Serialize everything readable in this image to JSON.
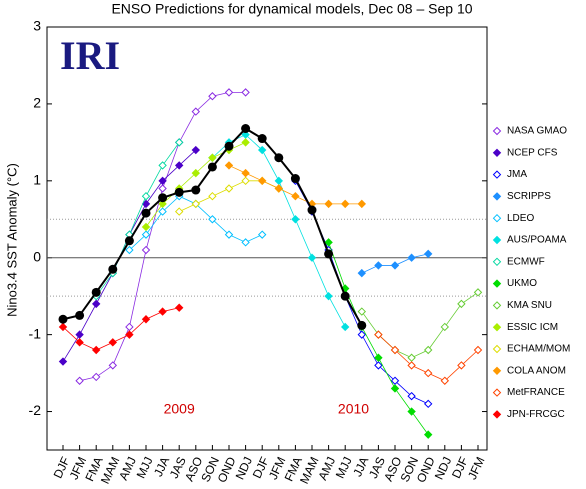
{
  "chart_data": {
    "type": "line",
    "title": "ENSO Predictions for dynamical models, Dec 08 – Sep 10",
    "y_label": "Nino3.4 SST Anomaly (°C)",
    "logo": "IRI",
    "annotations": [
      "2009",
      "2010"
    ],
    "categories": [
      "DJF",
      "JFM",
      "FMA",
      "MAM",
      "AMJ",
      "MJJ",
      "JJA",
      "JAS",
      "ASO",
      "SON",
      "OND",
      "NDJ",
      "DJF",
      "JFM",
      "FMA",
      "MAM",
      "AMJ",
      "MJJ",
      "JJA",
      "JAS",
      "ASO",
      "SON",
      "OND",
      "NDJ",
      "DJF",
      "JFM"
    ],
    "ylim": [
      -2.5,
      3
    ],
    "yticks": [
      -2,
      -1,
      0,
      1,
      2,
      3
    ],
    "reference_lines": [
      -0.5,
      0.5
    ],
    "mean": {
      "color": "#000000",
      "values": [
        -0.8,
        -0.75,
        -0.45,
        -0.15,
        0.22,
        0.58,
        0.78,
        0.85,
        0.88,
        1.18,
        1.45,
        1.68,
        1.55,
        1.3,
        1.03,
        0.62,
        0.05,
        -0.5,
        -0.88,
        null,
        null,
        null,
        null,
        null,
        null,
        null
      ]
    },
    "series": [
      {
        "name": "NASA GMAO",
        "color": "#8a2be2",
        "marker": "open",
        "values": [
          null,
          -1.6,
          -1.55,
          -1.4,
          -0.9,
          0.1,
          0.9,
          1.5,
          1.9,
          2.1,
          2.15,
          2.15,
          null,
          null,
          null,
          null,
          null,
          null,
          null,
          null,
          null,
          null,
          null,
          null,
          null,
          null
        ]
      },
      {
        "name": "NCEP CFS",
        "color": "#4b00c8",
        "marker": "filled",
        "values": [
          -1.35,
          -1.0,
          -0.6,
          -0.2,
          0.3,
          0.7,
          1.0,
          1.2,
          1.4,
          null,
          null,
          null,
          null,
          null,
          null,
          null,
          null,
          null,
          null,
          null,
          null,
          null,
          null,
          null,
          null,
          null
        ]
      },
      {
        "name": "JMA",
        "color": "#0000ff",
        "marker": "open",
        "values": [
          null,
          null,
          null,
          null,
          null,
          null,
          null,
          null,
          null,
          null,
          null,
          null,
          null,
          null,
          1.0,
          0.6,
          0.1,
          -0.5,
          -1.0,
          -1.4,
          -1.6,
          -1.8,
          -1.9,
          null,
          null,
          null
        ]
      },
      {
        "name": "SCRIPPS",
        "color": "#1e90ff",
        "marker": "filled",
        "values": [
          null,
          null,
          null,
          null,
          null,
          null,
          null,
          null,
          null,
          null,
          null,
          null,
          null,
          null,
          null,
          null,
          null,
          null,
          -0.2,
          -0.1,
          -0.1,
          0.0,
          0.05,
          null,
          null,
          null
        ]
      },
      {
        "name": "LDEO",
        "color": "#00bfff",
        "marker": "open",
        "values": [
          null,
          null,
          null,
          null,
          0.1,
          0.3,
          0.6,
          0.8,
          0.7,
          0.5,
          0.3,
          0.2,
          0.3,
          null,
          null,
          null,
          null,
          null,
          null,
          null,
          null,
          null,
          null,
          null,
          null,
          null
        ]
      },
      {
        "name": "AUS/POAMA",
        "color": "#00e0e0",
        "marker": "filled",
        "values": [
          null,
          null,
          null,
          null,
          null,
          null,
          null,
          null,
          null,
          1.3,
          1.5,
          1.6,
          1.4,
          1.0,
          0.5,
          0.0,
          -0.5,
          -0.9,
          null,
          null,
          null,
          null,
          null,
          null,
          null,
          null
        ]
      },
      {
        "name": "ECMWF",
        "color": "#00d8a0",
        "marker": "open",
        "values": [
          null,
          null,
          -0.5,
          -0.2,
          0.3,
          0.8,
          1.2,
          1.5,
          null,
          null,
          null,
          null,
          null,
          null,
          null,
          null,
          null,
          null,
          null,
          null,
          null,
          null,
          null,
          null,
          null,
          null
        ]
      },
      {
        "name": "UKMO",
        "color": "#00dd00",
        "marker": "filled",
        "values": [
          null,
          null,
          null,
          null,
          null,
          null,
          null,
          null,
          null,
          null,
          null,
          null,
          null,
          null,
          null,
          null,
          0.2,
          -0.4,
          -0.9,
          -1.3,
          -1.7,
          -2.0,
          -2.3,
          null,
          null,
          null
        ]
      },
      {
        "name": "KMA SNU",
        "color": "#66cc33",
        "marker": "open",
        "values": [
          null,
          null,
          null,
          null,
          null,
          null,
          null,
          null,
          null,
          null,
          null,
          null,
          null,
          null,
          null,
          null,
          null,
          null,
          -0.7,
          -1.0,
          -1.2,
          -1.3,
          -1.2,
          -0.9,
          -0.6,
          -0.45
        ]
      },
      {
        "name": "ESSIC ICM",
        "color": "#aaee00",
        "marker": "filled",
        "values": [
          null,
          null,
          null,
          null,
          null,
          0.4,
          0.7,
          0.9,
          1.1,
          1.3,
          1.4,
          1.5,
          null,
          null,
          null,
          null,
          null,
          null,
          null,
          null,
          null,
          null,
          null,
          null,
          null,
          null
        ]
      },
      {
        "name": "ECHAM/MOM",
        "color": "#dddd00",
        "marker": "open",
        "values": [
          null,
          null,
          null,
          null,
          null,
          null,
          null,
          0.6,
          0.7,
          0.8,
          0.9,
          1.0,
          1.0,
          0.9,
          null,
          null,
          null,
          null,
          null,
          null,
          null,
          null,
          null,
          null,
          null,
          null
        ]
      },
      {
        "name": "COLA ANOM",
        "color": "#ff9900",
        "marker": "filled",
        "values": [
          null,
          null,
          null,
          null,
          null,
          null,
          null,
          null,
          null,
          null,
          1.2,
          1.1,
          1.0,
          0.9,
          0.8,
          0.7,
          0.7,
          0.7,
          0.7,
          null,
          null,
          null,
          null,
          null,
          null,
          null
        ]
      },
      {
        "name": "MetFRANCE",
        "color": "#ff4400",
        "marker": "open",
        "values": [
          null,
          null,
          null,
          null,
          null,
          null,
          null,
          null,
          null,
          null,
          null,
          null,
          null,
          null,
          null,
          null,
          null,
          null,
          null,
          -1.0,
          -1.2,
          -1.4,
          -1.5,
          -1.6,
          -1.4,
          -1.2
        ]
      },
      {
        "name": "JPN-FRCGC",
        "color": "#ff0000",
        "marker": "filled",
        "values": [
          -0.9,
          -1.1,
          -1.2,
          -1.1,
          -1.0,
          -0.8,
          -0.7,
          -0.65,
          null,
          null,
          null,
          null,
          null,
          null,
          null,
          null,
          null,
          null,
          null,
          null,
          null,
          null,
          null,
          null,
          null,
          null
        ]
      }
    ]
  }
}
